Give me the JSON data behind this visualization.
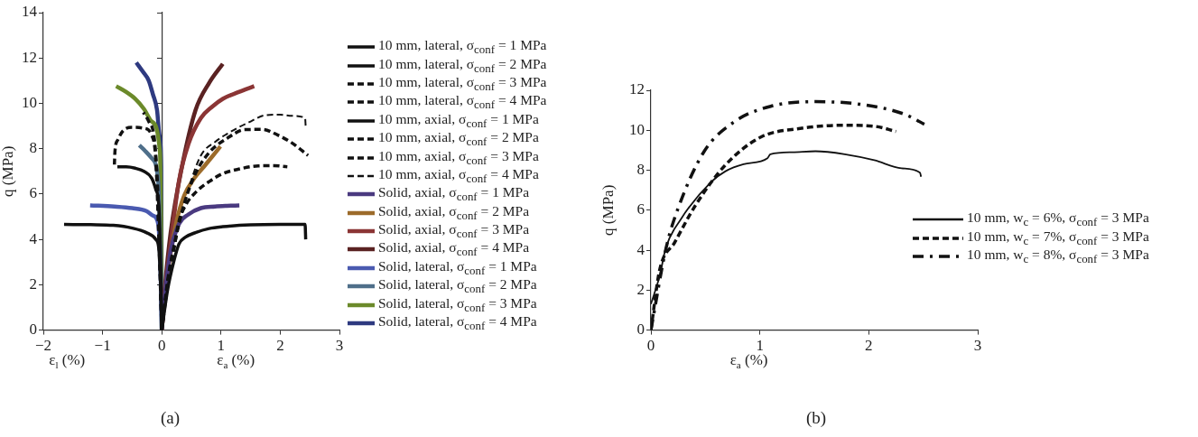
{
  "chart_data": [
    {
      "type": "line",
      "xlabel": "ε$_{a}$ (%)",
      "ylabel": "q (MPa)",
      "annotations": [
        "ε$_{l}$ (%)",
        "(a)"
      ],
      "xlim": [
        -2,
        3
      ],
      "xticks": [
        -2,
        -1,
        0,
        1,
        2,
        3
      ],
      "ylim": [
        0,
        14
      ],
      "yticks": [
        0,
        2,
        4,
        6,
        8,
        10,
        12,
        14
      ],
      "legend": "right",
      "series": [
        {
          "name": "10 mm, lateral, σ$_{conf}$ = 1 MPa",
          "color": "#111111",
          "line_style": "solid",
          "x": [
            0,
            -0.02,
            -0.05,
            -0.1,
            -0.26,
            -0.5,
            -0.82,
            -1.2,
            -1.65
          ],
          "values": [
            0,
            2,
            3.6,
            4.0,
            4.3,
            4.5,
            4.62,
            4.65,
            4.66
          ]
        },
        {
          "name": "10 mm, lateral, σ$_{conf}$ = 2 MPa",
          "color": "#111111",
          "line_style": "solid",
          "x": [
            0,
            -0.02,
            -0.05,
            -0.1,
            -0.17,
            -0.3,
            -0.45,
            -0.6,
            -0.75
          ],
          "values": [
            0,
            3,
            5.5,
            6.2,
            6.7,
            7.0,
            7.14,
            7.2,
            7.2
          ]
        },
        {
          "name": "10 mm, lateral, σ$_{conf}$ = 3 MPa",
          "color": "#111111",
          "line_style": "dashed",
          "x": [
            0,
            -0.05,
            -0.1,
            -0.17,
            -0.3,
            -0.5,
            -0.65,
            -0.74,
            -0.79,
            -0.8
          ],
          "values": [
            0,
            4,
            7.45,
            8.6,
            8.9,
            8.94,
            8.8,
            8.4,
            7.9,
            7.3
          ]
        },
        {
          "name": "10 mm, lateral, σ$_{conf}$ = 4 MPa",
          "color": "#111111",
          "line_style": "dashed",
          "x": [
            0,
            -0.05,
            -0.12,
            -0.22,
            -0.31
          ],
          "values": [
            0,
            5,
            8.3,
            9.2,
            9.6
          ]
        },
        {
          "name": "10 mm, axial, σ$_{conf}$ = 1 MPa",
          "color": "#111111",
          "line_style": "solid",
          "x": [
            0,
            0.1,
            0.2,
            0.29,
            0.4,
            0.57,
            0.8,
            1.03,
            1.5,
            2.0,
            2.42,
            2.43
          ],
          "values": [
            0,
            1.8,
            3.0,
            3.8,
            4.1,
            4.3,
            4.48,
            4.56,
            4.64,
            4.66,
            4.66,
            4.0
          ]
        },
        {
          "name": "10 mm, axial, σ$_{conf}$ = 2 MPa",
          "color": "#111111",
          "line_style": "dashed",
          "x": [
            0,
            0.1,
            0.2,
            0.29,
            0.4,
            0.57,
            0.8,
            1.03,
            1.3,
            1.63,
            1.9,
            2.12
          ],
          "values": [
            0,
            2.0,
            3.5,
            4.8,
            5.5,
            6.07,
            6.55,
            6.9,
            7.1,
            7.24,
            7.25,
            7.2
          ]
        },
        {
          "name": "10 mm, axial, σ$_{conf}$ = 3 MPa",
          "color": "#111111",
          "line_style": "dashed",
          "x": [
            0,
            0.1,
            0.2,
            0.35,
            0.55,
            0.8,
            1.1,
            1.4,
            1.7,
            1.96,
            2.2,
            2.47
          ],
          "values": [
            0,
            2.2,
            3.6,
            5.3,
            6.8,
            7.83,
            8.45,
            8.84,
            8.85,
            8.6,
            8.25,
            7.7
          ]
        },
        {
          "name": "10 mm, axial, σ$_{conf}$ = 4 MPa",
          "color": "#111111",
          "line_style": "dashed",
          "x": [
            0,
            0.1,
            0.25,
            0.45,
            0.66,
            0.9,
            1.1,
            1.31,
            1.5,
            1.73,
            2.0,
            2.2,
            2.42,
            2.43
          ],
          "values": [
            0,
            2.3,
            4.2,
            6.2,
            7.7,
            8.3,
            8.65,
            8.96,
            9.2,
            9.47,
            9.5,
            9.45,
            9.35,
            8.97
          ]
        },
        {
          "name": "Solid, axial, σ$_{conf}$ = 1  MPa",
          "color": "#4a3a80",
          "line_style": "solid",
          "x": [
            0,
            0.05,
            0.15,
            0.29,
            0.45,
            0.66,
            0.9,
            1.1,
            1.31
          ],
          "values": [
            0,
            1.5,
            3.5,
            4.68,
            5.1,
            5.38,
            5.45,
            5.48,
            5.5
          ]
        },
        {
          "name": "Solid, axial, σ$_{conf}$ = 2 MPa",
          "color": "#9c6b2a",
          "line_style": "solid",
          "x": [
            0,
            0.05,
            0.15,
            0.25,
            0.38,
            0.55,
            0.71,
            0.85,
            0.99
          ],
          "values": [
            0,
            1.5,
            3.4,
            4.8,
            5.94,
            6.7,
            7.2,
            7.65,
            8.1
          ]
        },
        {
          "name": "Solid, axial, σ$_{conf}$ = 3 MPa",
          "color": "#8b3535",
          "line_style": "solid",
          "x": [
            0,
            0.05,
            0.15,
            0.29,
            0.45,
            0.66,
            0.85,
            1.03,
            1.3,
            1.56
          ],
          "values": [
            0,
            1.6,
            3.8,
            6.57,
            8.2,
            9.35,
            9.85,
            10.2,
            10.5,
            10.76
          ]
        },
        {
          "name": "Solid, axial, σ$_{conf}$ = 4 MPa",
          "color": "#5a2222",
          "line_style": "solid",
          "x": [
            0,
            0.05,
            0.15,
            0.34,
            0.57,
            0.8,
            1.03
          ],
          "values": [
            0,
            1.8,
            4.3,
            7.2,
            9.7,
            10.9,
            11.74
          ]
        },
        {
          "name": "Solid, lateral, σ$_{conf}$ = 1 MPa",
          "color": "#4a5ab0",
          "line_style": "solid",
          "x": [
            0,
            -0.02,
            -0.06,
            -0.15,
            -0.26,
            -0.5,
            -0.8,
            -1.21
          ],
          "values": [
            0,
            2.5,
            4.68,
            5.05,
            5.25,
            5.38,
            5.45,
            5.5
          ]
        },
        {
          "name": "Solid, lateral, σ$_{conf}$ = 2 MPa",
          "color": "#4f6f8a",
          "line_style": "solid",
          "x": [
            0,
            -0.02,
            -0.06,
            -0.17,
            -0.28,
            -0.38
          ],
          "values": [
            0,
            3,
            6.57,
            7.58,
            7.9,
            8.15
          ]
        },
        {
          "name": "Solid, lateral, σ$_{conf}$ = 3 MPa",
          "color": "#6b8a2a",
          "line_style": "solid",
          "x": [
            0,
            -0.01,
            -0.03,
            -0.17,
            -0.3,
            -0.45,
            -0.6,
            -0.77
          ],
          "values": [
            0,
            4,
            7.83,
            9.2,
            9.75,
            10.2,
            10.5,
            10.76
          ]
        },
        {
          "name": "Solid, lateral, σ$_{conf}$ = 4 MPa",
          "color": "#2e3a80",
          "line_style": "solid",
          "x": [
            0,
            -0.005,
            -0.01,
            -0.04,
            -0.08,
            -0.15,
            -0.22,
            -0.32,
            -0.43
          ],
          "values": [
            0,
            4,
            7.2,
            8.6,
            9.7,
            10.4,
            11.0,
            11.4,
            11.8
          ]
        }
      ]
    },
    {
      "type": "line",
      "xlabel": "ε$_{a}$ (%)",
      "ylabel": "q (MPa)",
      "annotations": [
        "(b)"
      ],
      "xlim": [
        0,
        3
      ],
      "xticks": [
        0,
        1,
        2,
        3
      ],
      "ylim": [
        0,
        12
      ],
      "yticks": [
        0,
        2,
        4,
        6,
        8,
        10,
        12
      ],
      "legend": "right",
      "series": [
        {
          "name": "10 mm, w$_{c}$ = 6%, σ$_{conf}$ = 3 MPa",
          "color": "#111111",
          "line_style": "solid",
          "x": [
            0,
            0.08,
            0.137,
            0.274,
            0.548,
            0.685,
            0.85,
            1.07,
            1.096,
            1.3,
            1.51,
            1.78,
            2.05,
            2.3,
            2.47,
            2.48
          ],
          "values": [
            1.3,
            2.7,
            4.12,
            5.54,
            7.39,
            7.95,
            8.3,
            8.6,
            8.8,
            8.9,
            8.95,
            8.8,
            8.5,
            8.1,
            7.88,
            7.67
          ]
        },
        {
          "name": "10 mm, w$_{c}$ = 7%, σ$_{conf}$ = 3 MPa",
          "color": "#111111",
          "line_style": "dashed",
          "x": [
            0,
            0.08,
            0.22,
            0.41,
            0.68,
            1.01,
            1.37,
            1.78,
            2.05,
            2.25
          ],
          "values": [
            0,
            3.0,
            4.4,
            6.25,
            8.24,
            9.66,
            10.09,
            10.25,
            10.2,
            9.94
          ]
        },
        {
          "name": "10 mm, w$_{c}$ = 8%, σ$_{conf}$ = 3 MPa",
          "color": "#111111",
          "line_style": "dotted",
          "x": [
            0,
            0.14,
            0.25,
            0.49,
            0.77,
            1.1,
            1.51,
            1.92,
            2.33,
            2.51
          ],
          "values": [
            0,
            4.12,
            6.1,
            8.95,
            10.44,
            11.2,
            11.43,
            11.3,
            10.8,
            10.3
          ]
        }
      ]
    }
  ]
}
